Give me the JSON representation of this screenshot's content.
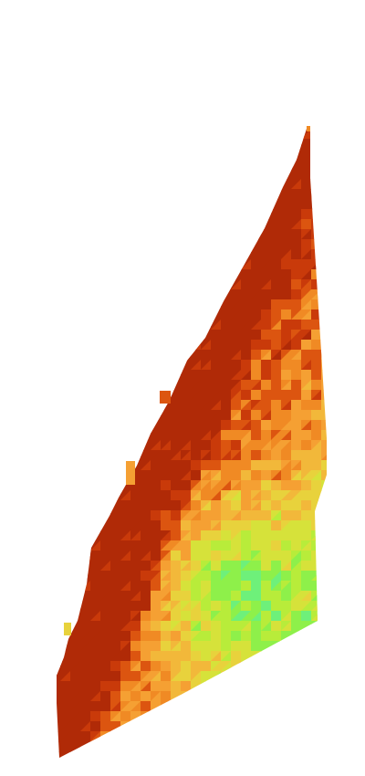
{
  "figure": {
    "kind": "heatmap-mesh",
    "palette": {
      "dark_red": "#b02a07",
      "red": "#c93a0a",
      "red_orange": "#dc5510",
      "orange": "#f08a24",
      "light_orange": "#f5a033",
      "yellow_orange": "#f2b83a",
      "yellow": "#e8d23c",
      "yellow_green": "#d6e23a",
      "lime": "#b8ec3a",
      "green": "#8ef04a",
      "light_green": "#6ef07a"
    }
  }
}
